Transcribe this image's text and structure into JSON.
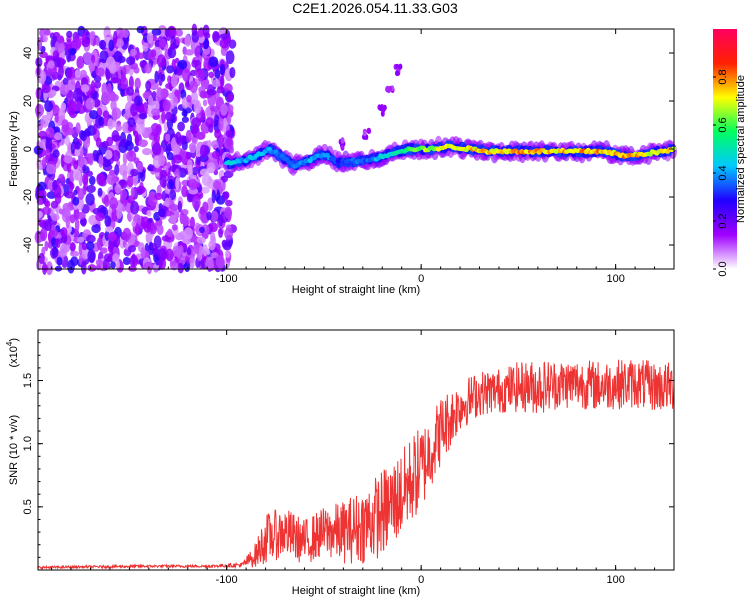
{
  "chart_title": "C2E1.2026.054.11.33.G03",
  "chart_data": [
    {
      "type": "heatmap",
      "name": "spectrogram",
      "xlabel": "Height of straight line (km)",
      "ylabel": "Frequency (Hz)",
      "xlim": [
        -197,
        130
      ],
      "ylim": [
        -50,
        50
      ],
      "x_ticks": [
        -100,
        0,
        100
      ],
      "y_ticks": [
        -40,
        -20,
        0,
        20,
        40
      ],
      "colorbar": {
        "label": "Normalized spectral amplitude",
        "range": [
          0,
          1
        ],
        "ticks": [
          0.0,
          0.2,
          0.4,
          0.6,
          0.8
        ],
        "colors": [
          "#ffffff",
          "#a000ff",
          "#2000ff",
          "#00c8ff",
          "#00ff60",
          "#ffff00",
          "#ff2000",
          "#ff0060"
        ]
      },
      "noise_region": {
        "x_from": -197,
        "x_to": -97,
        "freq_from": -50,
        "freq_to": 50,
        "amplitude": 0.15
      },
      "signal_trace": [
        {
          "x": -100,
          "freq": -6,
          "amp": 0.45
        },
        {
          "x": -92,
          "freq": -5,
          "amp": 0.4
        },
        {
          "x": -85,
          "freq": -3,
          "amp": 0.45
        },
        {
          "x": -78,
          "freq": 0,
          "amp": 0.4
        },
        {
          "x": -72,
          "freq": -3,
          "amp": 0.35
        },
        {
          "x": -65,
          "freq": -7,
          "amp": 0.35
        },
        {
          "x": -58,
          "freq": -5,
          "amp": 0.4
        },
        {
          "x": -50,
          "freq": -2,
          "amp": 0.4
        },
        {
          "x": -42,
          "freq": -6,
          "amp": 0.3
        },
        {
          "x": -35,
          "freq": -5,
          "amp": 0.35
        },
        {
          "x": -28,
          "freq": -5,
          "amp": 0.35
        },
        {
          "x": -20,
          "freq": -3,
          "amp": 0.45
        },
        {
          "x": -12,
          "freq": -1,
          "amp": 0.5
        },
        {
          "x": -5,
          "freq": 0,
          "amp": 0.6
        },
        {
          "x": 5,
          "freq": 0,
          "amp": 0.65
        },
        {
          "x": 15,
          "freq": 1,
          "amp": 0.7
        },
        {
          "x": 25,
          "freq": 0,
          "amp": 0.72
        },
        {
          "x": 35,
          "freq": -1,
          "amp": 0.75
        },
        {
          "x": 45,
          "freq": -1,
          "amp": 0.75
        },
        {
          "x": 55,
          "freq": -1,
          "amp": 0.78
        },
        {
          "x": 65,
          "freq": -1,
          "amp": 0.75
        },
        {
          "x": 75,
          "freq": -1,
          "amp": 0.75
        },
        {
          "x": 85,
          "freq": -1,
          "amp": 0.78
        },
        {
          "x": 95,
          "freq": -1,
          "amp": 0.75
        },
        {
          "x": 105,
          "freq": -3,
          "amp": 0.75
        },
        {
          "x": 115,
          "freq": -2,
          "amp": 0.72
        },
        {
          "x": 125,
          "freq": -1,
          "amp": 0.7
        },
        {
          "x": 130,
          "freq": 0,
          "amp": 0.7
        }
      ],
      "faint_branch": [
        {
          "x": -40,
          "freq": 2
        },
        {
          "x": -28,
          "freq": 6
        },
        {
          "x": -20,
          "freq": 16
        },
        {
          "x": -16,
          "freq": 25
        },
        {
          "x": -12,
          "freq": 33
        }
      ]
    },
    {
      "type": "line",
      "name": "snr",
      "xlabel": "Height of straight line (km)",
      "ylabel": "SNR (10 * v/v)",
      "scale_label": "(x10",
      "scale_exponent": "4",
      "xlim": [
        -197,
        130
      ],
      "ylim": [
        0,
        1.9
      ],
      "x_ticks": [
        -100,
        0,
        100
      ],
      "y_ticks": [
        0.5,
        1.0,
        1.5
      ],
      "line_color": "#ee3333",
      "series": [
        {
          "name": "SNR (x10^4)",
          "x": [
            -197,
            -170,
            -140,
            -110,
            -92,
            -85,
            -80,
            -70,
            -60,
            -50,
            -40,
            -30,
            -20,
            -10,
            -5,
            0,
            5,
            10,
            20,
            30,
            40,
            50,
            60,
            70,
            80,
            90,
            100,
            110,
            120,
            130
          ],
          "mean": [
            0.02,
            0.025,
            0.03,
            0.03,
            0.04,
            0.12,
            0.25,
            0.3,
            0.22,
            0.3,
            0.3,
            0.35,
            0.45,
            0.6,
            0.72,
            0.8,
            0.95,
            1.1,
            1.3,
            1.4,
            1.42,
            1.45,
            1.45,
            1.47,
            1.48,
            1.46,
            1.47,
            1.48,
            1.45,
            1.45
          ],
          "spread": [
            0.01,
            0.01,
            0.01,
            0.01,
            0.02,
            0.1,
            0.2,
            0.2,
            0.18,
            0.2,
            0.25,
            0.3,
            0.35,
            0.35,
            0.35,
            0.35,
            0.3,
            0.28,
            0.2,
            0.18,
            0.18,
            0.2,
            0.22,
            0.2,
            0.2,
            0.2,
            0.2,
            0.2,
            0.2,
            0.2
          ]
        }
      ]
    }
  ]
}
